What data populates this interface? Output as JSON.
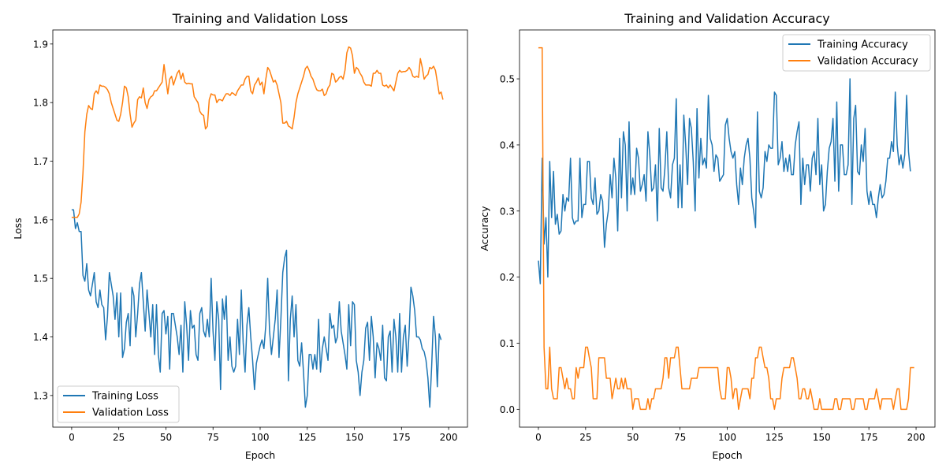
{
  "chart_data": [
    {
      "type": "line",
      "title": "Training and Validation Loss",
      "xlabel": "Epoch",
      "ylabel": "Loss",
      "xlim": [
        -10,
        210
      ],
      "ylim": [
        1.246,
        1.924
      ],
      "xticks": [
        "0",
        "25",
        "50",
        "75",
        "100",
        "125",
        "150",
        "175",
        "200"
      ],
      "yticks": [
        "1.3",
        "1.4",
        "1.5",
        "1.6",
        "1.7",
        "1.8",
        "1.9"
      ],
      "grid": false,
      "legend_position": "lower left",
      "series": [
        {
          "name": "Training Loss",
          "color": "#1f77b4",
          "values": [
            1.617,
            1.617,
            1.585,
            1.595,
            1.58,
            1.58,
            1.505,
            1.495,
            1.525,
            1.48,
            1.47,
            1.49,
            1.51,
            1.46,
            1.45,
            1.48,
            1.455,
            1.45,
            1.395,
            1.435,
            1.51,
            1.49,
            1.47,
            1.43,
            1.475,
            1.4,
            1.475,
            1.365,
            1.38,
            1.425,
            1.44,
            1.385,
            1.485,
            1.47,
            1.4,
            1.44,
            1.49,
            1.51,
            1.46,
            1.41,
            1.48,
            1.44,
            1.4,
            1.455,
            1.37,
            1.455,
            1.37,
            1.34,
            1.44,
            1.445,
            1.405,
            1.435,
            1.345,
            1.44,
            1.44,
            1.42,
            1.4,
            1.37,
            1.42,
            1.34,
            1.46,
            1.42,
            1.36,
            1.445,
            1.415,
            1.42,
            1.37,
            1.36,
            1.44,
            1.45,
            1.41,
            1.4,
            1.43,
            1.4,
            1.5,
            1.41,
            1.36,
            1.46,
            1.43,
            1.31,
            1.465,
            1.43,
            1.47,
            1.36,
            1.4,
            1.35,
            1.34,
            1.35,
            1.43,
            1.37,
            1.48,
            1.39,
            1.34,
            1.42,
            1.45,
            1.4,
            1.36,
            1.31,
            1.355,
            1.37,
            1.385,
            1.395,
            1.38,
            1.42,
            1.5,
            1.41,
            1.37,
            1.4,
            1.43,
            1.48,
            1.365,
            1.43,
            1.51,
            1.535,
            1.548,
            1.325,
            1.43,
            1.47,
            1.4,
            1.455,
            1.36,
            1.35,
            1.39,
            1.34,
            1.28,
            1.3,
            1.37,
            1.37,
            1.345,
            1.37,
            1.345,
            1.43,
            1.34,
            1.38,
            1.4,
            1.38,
            1.36,
            1.44,
            1.415,
            1.42,
            1.39,
            1.4,
            1.46,
            1.41,
            1.39,
            1.37,
            1.345,
            1.455,
            1.385,
            1.46,
            1.455,
            1.36,
            1.34,
            1.3,
            1.34,
            1.36,
            1.415,
            1.425,
            1.36,
            1.435,
            1.4,
            1.33,
            1.39,
            1.38,
            1.36,
            1.42,
            1.33,
            1.325,
            1.4,
            1.41,
            1.34,
            1.43,
            1.4,
            1.34,
            1.44,
            1.34,
            1.4,
            1.42,
            1.35,
            1.405,
            1.485,
            1.47,
            1.445,
            1.4,
            1.4,
            1.395,
            1.38,
            1.375,
            1.36,
            1.33,
            1.28,
            1.35,
            1.435,
            1.4,
            1.315,
            1.405,
            1.395
          ]
        },
        {
          "name": "Validation Loss",
          "color": "#ff7f0e",
          "values": [
            1.604,
            1.604,
            1.604,
            1.604,
            1.61,
            1.63,
            1.68,
            1.75,
            1.78,
            1.795,
            1.79,
            1.788,
            1.815,
            1.82,
            1.815,
            1.83,
            1.828,
            1.828,
            1.826,
            1.822,
            1.815,
            1.8,
            1.79,
            1.78,
            1.77,
            1.768,
            1.78,
            1.8,
            1.828,
            1.825,
            1.81,
            1.78,
            1.758,
            1.765,
            1.77,
            1.805,
            1.81,
            1.808,
            1.825,
            1.8,
            1.79,
            1.805,
            1.81,
            1.812,
            1.82,
            1.82,
            1.825,
            1.83,
            1.835,
            1.865,
            1.84,
            1.815,
            1.84,
            1.845,
            1.83,
            1.84,
            1.85,
            1.855,
            1.84,
            1.85,
            1.835,
            1.832,
            1.833,
            1.832,
            1.832,
            1.81,
            1.805,
            1.8,
            1.785,
            1.78,
            1.778,
            1.755,
            1.76,
            1.805,
            1.815,
            1.813,
            1.813,
            1.8,
            1.805,
            1.805,
            1.803,
            1.81,
            1.815,
            1.815,
            1.812,
            1.817,
            1.815,
            1.812,
            1.82,
            1.825,
            1.83,
            1.83,
            1.84,
            1.845,
            1.845,
            1.82,
            1.815,
            1.83,
            1.835,
            1.842,
            1.83,
            1.835,
            1.815,
            1.84,
            1.86,
            1.855,
            1.845,
            1.835,
            1.838,
            1.83,
            1.815,
            1.8,
            1.765,
            1.765,
            1.768,
            1.76,
            1.758,
            1.755,
            1.775,
            1.8,
            1.815,
            1.825,
            1.835,
            1.845,
            1.858,
            1.862,
            1.855,
            1.845,
            1.84,
            1.83,
            1.822,
            1.82,
            1.82,
            1.823,
            1.812,
            1.815,
            1.825,
            1.83,
            1.85,
            1.848,
            1.835,
            1.838,
            1.843,
            1.845,
            1.84,
            1.855,
            1.885,
            1.895,
            1.893,
            1.88,
            1.85,
            1.86,
            1.857,
            1.85,
            1.845,
            1.835,
            1.83,
            1.83,
            1.83,
            1.828,
            1.85,
            1.85,
            1.855,
            1.85,
            1.85,
            1.83,
            1.828,
            1.83,
            1.825,
            1.83,
            1.825,
            1.82,
            1.835,
            1.85,
            1.855,
            1.852,
            1.853,
            1.853,
            1.855,
            1.86,
            1.855,
            1.845,
            1.843,
            1.845,
            1.843,
            1.875,
            1.86,
            1.84,
            1.845,
            1.848,
            1.86,
            1.858,
            1.862,
            1.855,
            1.835,
            1.815,
            1.818,
            1.805
          ]
        }
      ]
    },
    {
      "type": "line",
      "title": "Training and Validation Accuracy",
      "xlabel": "Epoch",
      "ylabel": "Accuracy",
      "xlim": [
        -10,
        210
      ],
      "ylim": [
        -0.027,
        0.574
      ],
      "xticks": [
        "0",
        "25",
        "50",
        "75",
        "100",
        "125",
        "150",
        "175",
        "200"
      ],
      "yticks": [
        "0.0",
        "0.1",
        "0.2",
        "0.3",
        "0.4",
        "0.5"
      ],
      "grid": false,
      "legend_position": "upper right",
      "series": [
        {
          "name": "Training Accuracy",
          "color": "#1f77b4",
          "values": [
            0.225,
            0.19,
            0.38,
            0.25,
            0.29,
            0.2,
            0.375,
            0.29,
            0.36,
            0.28,
            0.295,
            0.265,
            0.27,
            0.325,
            0.3,
            0.32,
            0.315,
            0.38,
            0.29,
            0.28,
            0.285,
            0.285,
            0.38,
            0.29,
            0.31,
            0.31,
            0.375,
            0.375,
            0.32,
            0.31,
            0.35,
            0.295,
            0.3,
            0.325,
            0.315,
            0.245,
            0.28,
            0.3,
            0.355,
            0.32,
            0.38,
            0.35,
            0.27,
            0.41,
            0.32,
            0.42,
            0.4,
            0.3,
            0.435,
            0.325,
            0.35,
            0.325,
            0.395,
            0.38,
            0.33,
            0.34,
            0.355,
            0.315,
            0.42,
            0.385,
            0.33,
            0.335,
            0.37,
            0.285,
            0.425,
            0.335,
            0.33,
            0.365,
            0.42,
            0.335,
            0.32,
            0.37,
            0.38,
            0.47,
            0.305,
            0.37,
            0.305,
            0.445,
            0.4,
            0.34,
            0.44,
            0.425,
            0.375,
            0.3,
            0.455,
            0.35,
            0.41,
            0.37,
            0.38,
            0.365,
            0.475,
            0.41,
            0.4,
            0.36,
            0.385,
            0.38,
            0.345,
            0.35,
            0.355,
            0.43,
            0.44,
            0.41,
            0.39,
            0.38,
            0.39,
            0.34,
            0.31,
            0.365,
            0.34,
            0.38,
            0.4,
            0.41,
            0.38,
            0.32,
            0.3,
            0.275,
            0.45,
            0.33,
            0.32,
            0.335,
            0.39,
            0.375,
            0.4,
            0.395,
            0.395,
            0.48,
            0.475,
            0.37,
            0.38,
            0.405,
            0.36,
            0.38,
            0.36,
            0.385,
            0.355,
            0.355,
            0.4,
            0.42,
            0.435,
            0.31,
            0.38,
            0.34,
            0.37,
            0.37,
            0.33,
            0.38,
            0.39,
            0.355,
            0.44,
            0.34,
            0.37,
            0.3,
            0.31,
            0.36,
            0.395,
            0.405,
            0.44,
            0.345,
            0.465,
            0.33,
            0.4,
            0.4,
            0.355,
            0.355,
            0.37,
            0.5,
            0.31,
            0.44,
            0.46,
            0.36,
            0.355,
            0.4,
            0.375,
            0.425,
            0.33,
            0.31,
            0.33,
            0.31,
            0.31,
            0.29,
            0.32,
            0.34,
            0.32,
            0.325,
            0.345,
            0.38,
            0.38,
            0.405,
            0.39,
            0.48,
            0.4,
            0.37,
            0.385,
            0.365,
            0.385,
            0.475,
            0.39,
            0.36
          ]
        },
        {
          "name": "Validation Accuracy",
          "color": "#ff7f0e",
          "values": [
            0.547,
            0.547,
            0.547,
            0.094,
            0.031,
            0.031,
            0.094,
            0.031,
            0.016,
            0.016,
            0.016,
            0.063,
            0.063,
            0.047,
            0.031,
            0.047,
            0.031,
            0.031,
            0.016,
            0.016,
            0.063,
            0.047,
            0.063,
            0.063,
            0.063,
            0.094,
            0.094,
            0.078,
            0.063,
            0.016,
            0.016,
            0.016,
            0.078,
            0.078,
            0.078,
            0.078,
            0.047,
            0.047,
            0.047,
            0.016,
            0.031,
            0.047,
            0.031,
            0.031,
            0.047,
            0.031,
            0.047,
            0.031,
            0.031,
            0.031,
            0.0,
            0.016,
            0.016,
            0.016,
            0.0,
            0.0,
            0.0,
            0.0,
            0.016,
            0.0,
            0.016,
            0.016,
            0.031,
            0.031,
            0.031,
            0.031,
            0.047,
            0.078,
            0.078,
            0.047,
            0.078,
            0.078,
            0.078,
            0.094,
            0.094,
            0.063,
            0.031,
            0.031,
            0.031,
            0.031,
            0.031,
            0.047,
            0.047,
            0.047,
            0.047,
            0.063,
            0.063,
            0.063,
            0.063,
            0.063,
            0.063,
            0.063,
            0.063,
            0.063,
            0.063,
            0.063,
            0.031,
            0.016,
            0.016,
            0.016,
            0.063,
            0.063,
            0.047,
            0.016,
            0.031,
            0.031,
            0.0,
            0.016,
            0.031,
            0.031,
            0.031,
            0.031,
            0.016,
            0.047,
            0.047,
            0.078,
            0.078,
            0.094,
            0.094,
            0.078,
            0.063,
            0.063,
            0.047,
            0.016,
            0.016,
            0.0,
            0.016,
            0.016,
            0.016,
            0.047,
            0.063,
            0.063,
            0.063,
            0.063,
            0.078,
            0.078,
            0.063,
            0.047,
            0.016,
            0.016,
            0.031,
            0.031,
            0.016,
            0.016,
            0.031,
            0.016,
            0.0,
            0.0,
            0.0,
            0.016,
            0.0,
            0.0,
            0.0,
            0.0,
            0.0,
            0.0,
            0.0,
            0.016,
            0.016,
            0.0,
            0.0,
            0.016,
            0.016,
            0.016,
            0.016,
            0.016,
            0.0,
            0.0,
            0.016,
            0.016,
            0.016,
            0.016,
            0.016,
            0.0,
            0.0,
            0.016,
            0.016,
            0.016,
            0.016,
            0.031,
            0.016,
            0.0,
            0.016,
            0.016,
            0.016,
            0.016,
            0.016,
            0.016,
            0.0,
            0.016,
            0.031,
            0.031,
            0.0,
            0.0,
            0.0,
            0.0,
            0.016,
            0.063,
            0.063,
            0.063
          ]
        }
      ]
    }
  ]
}
